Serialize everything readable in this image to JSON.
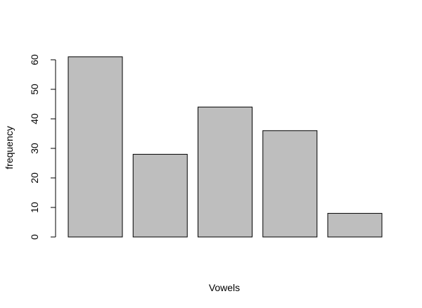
{
  "chart_data": {
    "type": "bar",
    "title": "",
    "xlabel": "Vowels",
    "ylabel": "frequency",
    "ylim": [
      0,
      60
    ],
    "yticks": [
      0,
      10,
      20,
      30,
      40,
      50,
      60
    ],
    "categories": [
      "",
      "",
      "",
      "",
      ""
    ],
    "values": [
      61,
      28,
      44,
      36,
      8
    ],
    "bar_color": "#bebebe",
    "grid": false
  }
}
